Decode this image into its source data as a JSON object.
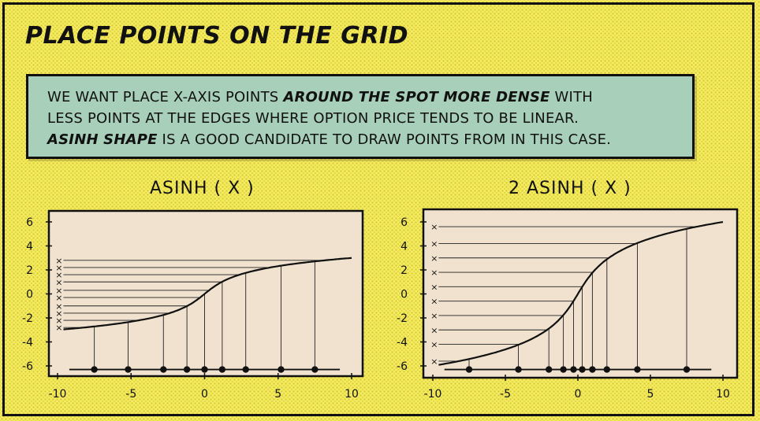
{
  "title": "PLACE POINTS ON THE GRID",
  "callout": {
    "line1_pre": "WE WANT PLACE X-AXIS POINTS ",
    "line1_em": "AROUND THE SPOT MORE DENSE",
    "line1_post": " WITH",
    "line2": "LESS POINTS AT THE EDGES WHERE OPTION PRICE TENDS TO BE LINEAR.",
    "line3_em": "ASINH SHAPE",
    "line3_post": " IS A GOOD CANDIDATE TO DRAW POINTS FROM IN THIS CASE."
  },
  "colors": {
    "background": "#f2ec5e",
    "callout": "#a7cfb9",
    "paper": "#f0e2cf",
    "ink": "#111111"
  },
  "chart_data": [
    {
      "type": "line",
      "title": "ASINH ( X )",
      "scale": 1,
      "xlim": [
        -11,
        11
      ],
      "ylim": [
        -7,
        7
      ],
      "x_ticks": [
        -10,
        -5,
        0,
        5,
        10
      ],
      "y_ticks": [
        6,
        4,
        2,
        0,
        -2,
        -4,
        -6
      ],
      "grid_points_x": [
        -7.5,
        -5.2,
        -2.8,
        -1.2,
        0,
        1.2,
        2.8,
        5.2,
        7.5
      ],
      "y_markers": [
        2.8,
        2.2,
        1.6,
        1.0,
        0.3,
        -0.3,
        -1.0,
        -1.6,
        -2.2,
        -2.8
      ],
      "marker_symbol": "×",
      "point_symbol": "●"
    },
    {
      "type": "line",
      "title": "2 ASINH ( X )",
      "scale": 2,
      "xlim": [
        -11,
        11
      ],
      "ylim": [
        -7,
        7
      ],
      "x_ticks": [
        -10,
        -5,
        0,
        5,
        10
      ],
      "y_ticks": [
        6,
        4,
        2,
        0,
        -2,
        -4,
        -6
      ],
      "grid_points_x": [
        -7.5,
        -4.1,
        -2.0,
        -1.0,
        -0.3,
        0.3,
        1.0,
        2.0,
        4.1,
        7.5
      ],
      "y_markers": [
        5.6,
        4.2,
        3.0,
        1.8,
        0.6,
        -0.6,
        -1.8,
        -3.0,
        -4.2,
        -5.6
      ],
      "marker_symbol": "×",
      "point_symbol": "●"
    }
  ]
}
